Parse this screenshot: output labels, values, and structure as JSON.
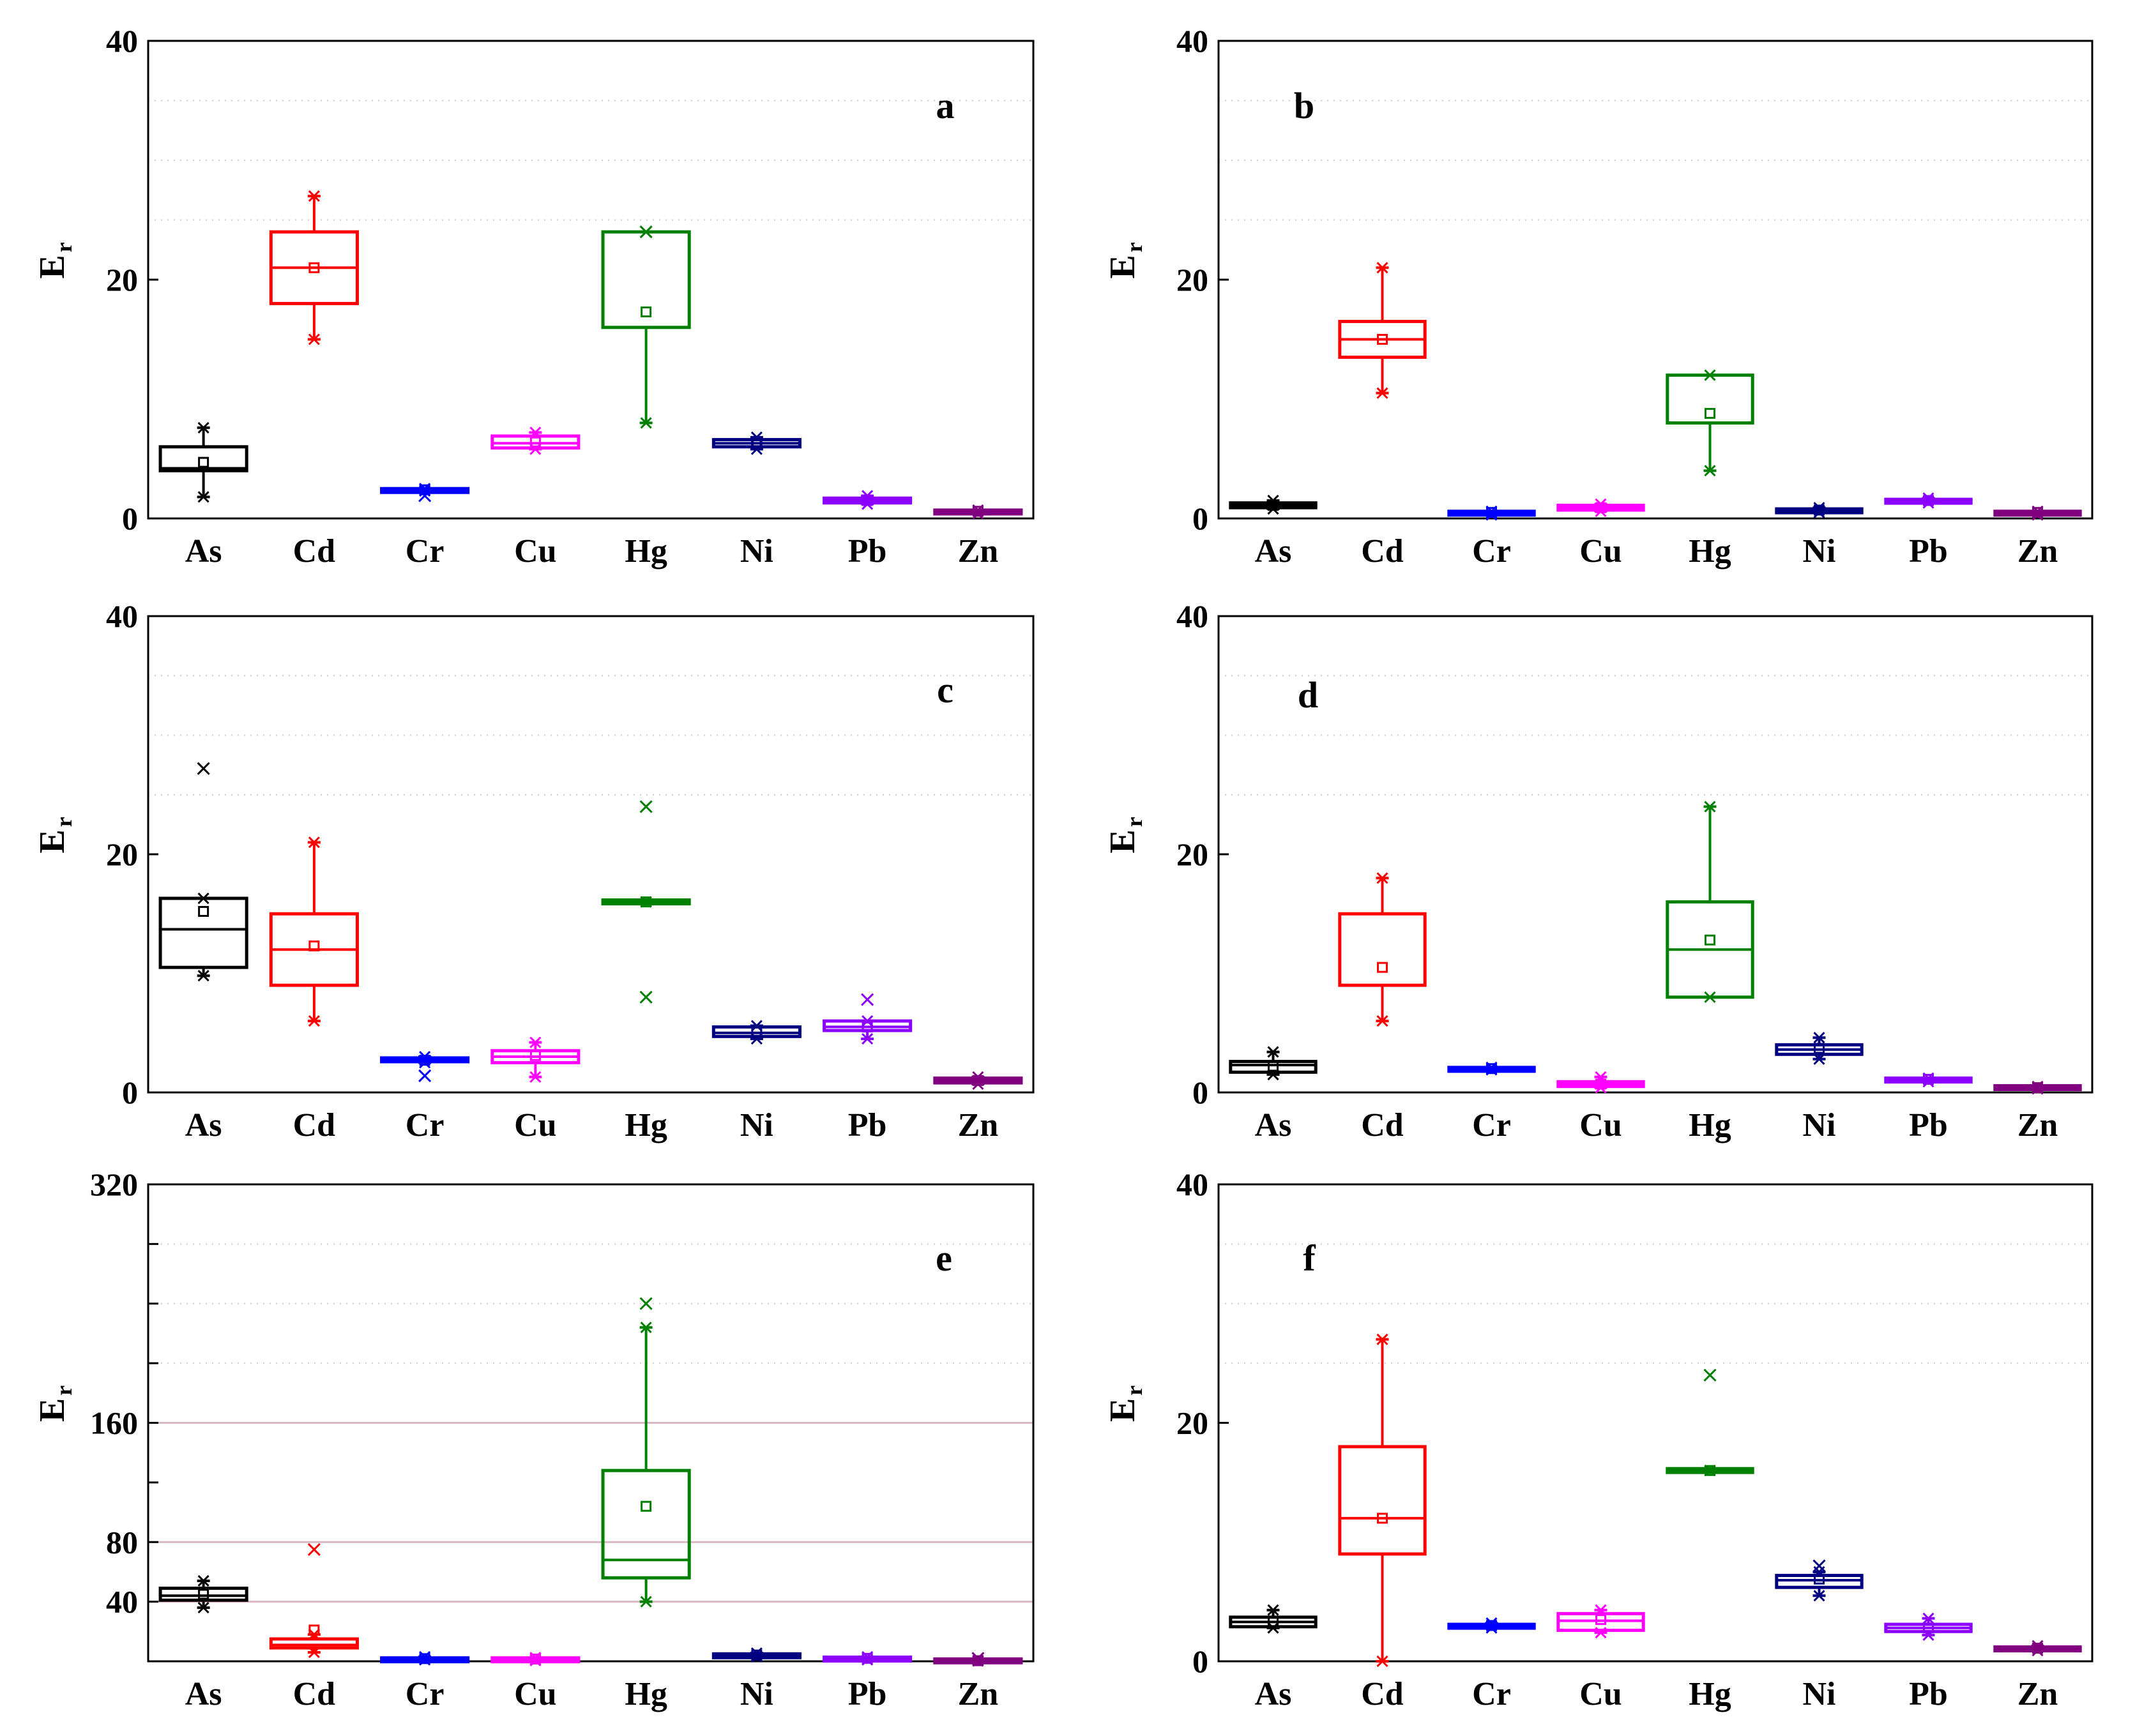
{
  "chart_data": [
    {
      "id": "a",
      "type": "box",
      "panel_label": "a",
      "ylabel": "E",
      "ylabel_sub": "r",
      "ylim": [
        0,
        40
      ],
      "yticks": [
        0,
        20,
        40
      ],
      "yminor": [],
      "categories": [
        "As",
        "Cd",
        "Cr",
        "Cu",
        "Hg",
        "Ni",
        "Pb",
        "Zn"
      ],
      "colors": [
        "#000000",
        "#ff0000",
        "#0000ff",
        "#ff00ff",
        "#008000",
        "#000080",
        "#8b00ff",
        "#800080"
      ],
      "boxes": [
        {
          "min": 1.8,
          "q1": 4.0,
          "median": 4.2,
          "q3": 6.0,
          "max": 7.6,
          "mean": 4.7,
          "outliers": []
        },
        {
          "min": 15.0,
          "q1": 18.0,
          "median": 21.0,
          "q3": 24.0,
          "max": 27.0,
          "mean": 21.0,
          "outliers": []
        },
        {
          "min": 2.3,
          "q1": 2.3,
          "median": 2.4,
          "q3": 2.5,
          "max": 2.5,
          "mean": 2.4,
          "outliers": [
            1.9
          ]
        },
        {
          "min": 5.8,
          "q1": 5.9,
          "median": 6.3,
          "q3": 6.9,
          "max": 7.2,
          "mean": 6.4,
          "outliers": []
        },
        {
          "min": 8.0,
          "q1": 16.0,
          "median": 24.0,
          "q3": 24.0,
          "max": 24.0,
          "mean": 17.3,
          "outliers": [
            24.0
          ]
        },
        {
          "min": 5.8,
          "q1": 6.0,
          "median": 6.3,
          "q3": 6.6,
          "max": 6.8,
          "mean": 6.3,
          "outliers": []
        },
        {
          "min": 1.2,
          "q1": 1.3,
          "median": 1.5,
          "q3": 1.7,
          "max": 1.9,
          "mean": 1.5,
          "outliers": []
        },
        {
          "min": 0.4,
          "q1": 0.5,
          "median": 0.6,
          "q3": 0.7,
          "max": 0.7,
          "mean": 0.6,
          "outliers": []
        }
      ]
    },
    {
      "id": "b",
      "type": "box",
      "panel_label": "b",
      "ylabel": "E",
      "ylabel_sub": "r",
      "ylim": [
        0,
        40
      ],
      "yticks": [
        0,
        20,
        40
      ],
      "yminor": [],
      "categories": [
        "As",
        "Cd",
        "Cr",
        "Cu",
        "Hg",
        "Ni",
        "Pb",
        "Zn"
      ],
      "colors": [
        "#000000",
        "#ff0000",
        "#0000ff",
        "#ff00ff",
        "#008000",
        "#000080",
        "#8b00ff",
        "#800080"
      ],
      "boxes": [
        {
          "min": 0.8,
          "q1": 0.9,
          "median": 1.1,
          "q3": 1.3,
          "max": 1.5,
          "mean": 1.1,
          "outliers": []
        },
        {
          "min": 10.5,
          "q1": 13.5,
          "median": 15.0,
          "q3": 16.5,
          "max": 21.0,
          "mean": 15.0,
          "outliers": []
        },
        {
          "min": 0.3,
          "q1": 0.4,
          "median": 0.5,
          "q3": 0.6,
          "max": 0.6,
          "mean": 0.5,
          "outliers": []
        },
        {
          "min": 0.6,
          "q1": 0.7,
          "median": 0.9,
          "q3": 1.1,
          "max": 1.2,
          "mean": 0.9,
          "outliers": []
        },
        {
          "min": 4.0,
          "q1": 8.0,
          "median": 8.0,
          "q3": 12.0,
          "max": 12.0,
          "mean": 8.8,
          "outliers": []
        },
        {
          "min": 0.5,
          "q1": 0.6,
          "median": 0.7,
          "q3": 0.8,
          "max": 0.9,
          "mean": 0.7,
          "outliers": []
        },
        {
          "min": 1.3,
          "q1": 1.4,
          "median": 1.5,
          "q3": 1.6,
          "max": 1.7,
          "mean": 1.5,
          "outliers": []
        },
        {
          "min": 0.3,
          "q1": 0.4,
          "median": 0.5,
          "q3": 0.6,
          "max": 0.6,
          "mean": 0.5,
          "outliers": []
        }
      ]
    },
    {
      "id": "c",
      "type": "box",
      "panel_label": "c",
      "ylabel": "E",
      "ylabel_sub": "r",
      "ylim": [
        0,
        40
      ],
      "yticks": [
        0,
        20,
        40
      ],
      "yminor": [],
      "categories": [
        "As",
        "Cd",
        "Cr",
        "Cu",
        "Hg",
        "Ni",
        "Pb",
        "Zn"
      ],
      "colors": [
        "#000000",
        "#ff0000",
        "#0000ff",
        "#ff00ff",
        "#008000",
        "#000080",
        "#8b00ff",
        "#800080"
      ],
      "boxes": [
        {
          "min": 9.8,
          "q1": 10.5,
          "median": 13.7,
          "q3": 16.3,
          "max": 16.3,
          "mean": 15.2,
          "outliers": [
            27.2
          ]
        },
        {
          "min": 6.0,
          "q1": 9.0,
          "median": 12.0,
          "q3": 15.0,
          "max": 21.0,
          "mean": 12.3,
          "outliers": []
        },
        {
          "min": 2.5,
          "q1": 2.6,
          "median": 2.7,
          "q3": 2.9,
          "max": 3.0,
          "mean": 2.7,
          "outliers": [
            1.4
          ]
        },
        {
          "min": 1.3,
          "q1": 2.5,
          "median": 3.0,
          "q3": 3.5,
          "max": 4.2,
          "mean": 3.1,
          "outliers": []
        },
        {
          "min": 16.0,
          "q1": 16.0,
          "median": 16.0,
          "q3": 16.0,
          "max": 16.0,
          "mean": 16.0,
          "outliers": [
            24.0,
            8.0
          ]
        },
        {
          "min": 4.5,
          "q1": 4.7,
          "median": 5.0,
          "q3": 5.5,
          "max": 5.6,
          "mean": 5.1,
          "outliers": []
        },
        {
          "min": 4.5,
          "q1": 5.2,
          "median": 5.5,
          "q3": 6.0,
          "max": 6.0,
          "mean": 5.5,
          "outliers": [
            7.8
          ]
        },
        {
          "min": 0.7,
          "q1": 0.8,
          "median": 1.0,
          "q3": 1.2,
          "max": 1.3,
          "mean": 1.0,
          "outliers": []
        }
      ]
    },
    {
      "id": "d",
      "type": "box",
      "panel_label": "d",
      "ylabel": "E",
      "ylabel_sub": "r",
      "ylim": [
        0,
        40
      ],
      "yticks": [
        0,
        20,
        40
      ],
      "yminor": [],
      "categories": [
        "As",
        "Cd",
        "Cr",
        "Cu",
        "Hg",
        "Ni",
        "Pb",
        "Zn"
      ],
      "colors": [
        "#000000",
        "#ff0000",
        "#0000ff",
        "#ff00ff",
        "#008000",
        "#000080",
        "#8b00ff",
        "#800080"
      ],
      "boxes": [
        {
          "min": 1.5,
          "q1": 1.7,
          "median": 2.3,
          "q3": 2.6,
          "max": 3.4,
          "mean": 2.2,
          "outliers": []
        },
        {
          "min": 6.0,
          "q1": 9.0,
          "median": 9.0,
          "q3": 15.0,
          "max": 18.0,
          "mean": 10.5,
          "outliers": []
        },
        {
          "min": 1.9,
          "q1": 1.9,
          "median": 2.0,
          "q3": 2.1,
          "max": 2.1,
          "mean": 2.0,
          "outliers": []
        },
        {
          "min": 0.4,
          "q1": 0.5,
          "median": 0.7,
          "q3": 0.9,
          "max": 1.3,
          "mean": 0.7,
          "outliers": []
        },
        {
          "min": 8.0,
          "q1": 8.0,
          "median": 12.0,
          "q3": 16.0,
          "max": 24.0,
          "mean": 12.8,
          "outliers": []
        },
        {
          "min": 2.8,
          "q1": 3.2,
          "median": 3.6,
          "q3": 4.0,
          "max": 4.6,
          "mean": 3.7,
          "outliers": []
        },
        {
          "min": 0.9,
          "q1": 1.0,
          "median": 1.1,
          "q3": 1.2,
          "max": 1.2,
          "mean": 1.1,
          "outliers": []
        },
        {
          "min": 0.3,
          "q1": 0.4,
          "median": 0.4,
          "q3": 0.5,
          "max": 0.5,
          "mean": 0.4,
          "outliers": []
        }
      ]
    },
    {
      "id": "e",
      "type": "box",
      "panel_label": "e",
      "ylabel": "E",
      "ylabel_sub": "r",
      "ylim": [
        0,
        320
      ],
      "yticks": [
        40,
        80,
        160,
        320
      ],
      "yminor": [
        120,
        200,
        240,
        280
      ],
      "reference_lines": [
        40,
        80,
        160
      ],
      "categories": [
        "As",
        "Cd",
        "Cr",
        "Cu",
        "Hg",
        "Ni",
        "Pb",
        "Zn"
      ],
      "colors": [
        "#000000",
        "#ff0000",
        "#0000ff",
        "#ff00ff",
        "#008000",
        "#000080",
        "#8b00ff",
        "#800080"
      ],
      "boxes": [
        {
          "min": 36.0,
          "q1": 41.0,
          "median": 44.0,
          "q3": 49.0,
          "max": 54.0,
          "mean": 45.0,
          "outliers": []
        },
        {
          "min": 6.0,
          "q1": 9.0,
          "median": 11.0,
          "q3": 15.0,
          "max": 18.0,
          "mean": 21.0,
          "outliers": [
            75.0
          ]
        },
        {
          "min": 1.0,
          "q1": 1.0,
          "median": 1.5,
          "q3": 2.0,
          "max": 3.0,
          "mean": 1.8,
          "outliers": []
        },
        {
          "min": 0.5,
          "q1": 1.0,
          "median": 1.5,
          "q3": 2.0,
          "max": 2.5,
          "mean": 1.5,
          "outliers": []
        },
        {
          "min": 40.0,
          "q1": 56.0,
          "median": 68.0,
          "q3": 128.0,
          "max": 224.0,
          "mean": 104.0,
          "outliers": [
            240.0
          ]
        },
        {
          "min": 3.0,
          "q1": 3.5,
          "median": 4.0,
          "q3": 5.0,
          "max": 5.5,
          "mean": 4.2,
          "outliers": []
        },
        {
          "min": 1.0,
          "q1": 1.5,
          "median": 2.0,
          "q3": 2.5,
          "max": 3.0,
          "mean": 2.0,
          "outliers": []
        },
        {
          "min": 0.2,
          "q1": 0.3,
          "median": 0.4,
          "q3": 0.5,
          "max": 0.6,
          "mean": 0.4,
          "outliers": [
            2.0
          ]
        }
      ]
    },
    {
      "id": "f",
      "type": "box",
      "panel_label": "f",
      "ylabel": "E",
      "ylabel_sub": "r",
      "ylim": [
        0,
        40
      ],
      "yticks": [
        0,
        20,
        40
      ],
      "yminor": [],
      "categories": [
        "As",
        "Cd",
        "Cr",
        "Cu",
        "Hg",
        "Ni",
        "Pb",
        "Zn"
      ],
      "colors": [
        "#000000",
        "#ff0000",
        "#0000ff",
        "#ff00ff",
        "#008000",
        "#000080",
        "#8b00ff",
        "#800080"
      ],
      "boxes": [
        {
          "min": 2.8,
          "q1": 2.9,
          "median": 3.3,
          "q3": 3.7,
          "max": 4.3,
          "mean": 3.3,
          "outliers": []
        },
        {
          "min": 0.0,
          "q1": 9.0,
          "median": 12.0,
          "q3": 18.0,
          "max": 27.0,
          "mean": 12.0,
          "outliers": []
        },
        {
          "min": 2.8,
          "q1": 2.9,
          "median": 3.0,
          "q3": 3.1,
          "max": 3.2,
          "mean": 3.0,
          "outliers": []
        },
        {
          "min": 2.4,
          "q1": 2.6,
          "median": 3.4,
          "q3": 4.0,
          "max": 4.3,
          "mean": 3.5,
          "outliers": []
        },
        {
          "min": 16.0,
          "q1": 16.0,
          "median": 16.0,
          "q3": 16.0,
          "max": 16.0,
          "mean": 16.0,
          "outliers": [
            24.0
          ]
        },
        {
          "min": 5.5,
          "q1": 6.2,
          "median": 6.8,
          "q3": 7.2,
          "max": 7.5,
          "mean": 6.9,
          "outliers": [
            8.0
          ]
        },
        {
          "min": 2.2,
          "q1": 2.5,
          "median": 2.8,
          "q3": 3.1,
          "max": 3.6,
          "mean": 2.8,
          "outliers": []
        },
        {
          "min": 0.9,
          "q1": 1.0,
          "median": 1.1,
          "q3": 1.2,
          "max": 1.3,
          "mean": 1.1,
          "outliers": []
        }
      ]
    }
  ]
}
